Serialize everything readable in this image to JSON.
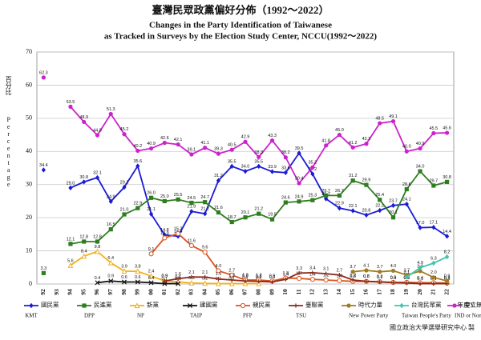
{
  "chart_data": {
    "type": "line",
    "title": "臺灣民眾政黨偏好分佈（1992～2022）",
    "subtitle": "Changes in the Party Identification of Taiwanese",
    "subtitle2": "as Tracked in Surveys by the Election Study Center, NCCU(1992～2022)",
    "y_label": "百分比",
    "y_label_en": "Percentage",
    "x_label": "年度Y",
    "source": "國立政治大學選舉研究中心 製",
    "categories": [
      "92",
      "93",
      "94",
      "95",
      "96",
      "97",
      "98",
      "99",
      "00",
      "01",
      "02",
      "03",
      "04",
      "05",
      "06",
      "07",
      "08",
      "09",
      "10",
      "11",
      "12",
      "13",
      "14",
      "15",
      "16",
      "17",
      "18",
      "19",
      "20",
      "21",
      "22"
    ],
    "ylim": [
      0,
      70
    ],
    "yticks": [
      0,
      10,
      20,
      30,
      40,
      50,
      60,
      70
    ],
    "grid": true,
    "legend": "bottom",
    "series": [
      {
        "name": "國民黨",
        "name_en": "KMT",
        "color": "#1b1bd6",
        "marker": "diamond",
        "values": [
          34.4,
          null,
          29.0,
          30.8,
          32.1,
          24.9,
          29.2,
          35.6,
          21.1,
          14.8,
          14.4,
          21.9,
          21.2,
          31.2,
          35.5,
          34.0,
          35.5,
          33.9,
          33.6,
          39.5,
          33.2,
          25.7,
          22.9,
          22.1,
          20.8,
          22.2,
          23.7,
          24.1,
          17.0,
          17.1,
          14.4
        ],
        "value_labels": [
          "34.4",
          null,
          "29.0",
          "30.8",
          "32.1",
          "24.9",
          "29.2",
          "35.6",
          "21.1",
          "14.8",
          "14.4",
          "21.9",
          "21.2",
          "31.2",
          "35.5",
          "34.0",
          "35.5",
          "33.9",
          "33.6",
          "39.5",
          "33.2",
          "25.7",
          "22.9",
          "22.1",
          "20.8",
          "22.2",
          "23.7",
          "24.1",
          "17.0",
          "17.1",
          "14.4"
        ]
      },
      {
        "name": "民進黨",
        "name_en": "DPP",
        "color": "#2e7d1f",
        "marker": "square",
        "values": [
          3.3,
          null,
          12.1,
          12.8,
          12.8,
          16.5,
          21.0,
          22.9,
          26.0,
          25.0,
          25.5,
          24.5,
          24.7,
          21.6,
          18.7,
          20.1,
          21.2,
          19.5,
          24.6,
          24.9,
          25.3,
          26.7,
          26.7,
          31.2,
          29.9,
          25.4,
          20.1,
          28.6,
          34.0,
          29.7,
          30.8
        ],
        "value_labels": [
          "3.3",
          null,
          "12.1",
          "12.8",
          "12.8",
          "16.5",
          "21.0",
          "22.9",
          "26.0",
          "25.0",
          "25.5",
          "24.5",
          "24.7",
          "21.6",
          "18.7",
          "20.1",
          "21.2",
          "19.5",
          "24.6",
          "24.9",
          "25.3",
          "26.7",
          "26.7",
          "31.2",
          "29.9",
          "25.4",
          "20.1",
          "28.6",
          "34.0",
          "29.7",
          "30.8"
        ]
      },
      {
        "name": "新黨",
        "name_en": "NP",
        "color": "#f0b020",
        "marker": "triangle",
        "values": [
          null,
          null,
          5.6,
          8.4,
          9.8,
          6.4,
          3.9,
          3.8,
          2.4,
          0.9,
          0.6,
          0.3,
          0.2,
          0.1,
          0.1,
          0.1,
          0.1,
          null,
          null,
          null,
          null,
          null,
          null,
          null,
          null,
          null,
          null,
          null,
          null,
          null,
          null
        ],
        "value_labels": [
          null,
          null,
          "5.6",
          "8.4",
          "9.8",
          "6.4",
          "3.9",
          "3.8",
          "2.4",
          "0.9",
          "0.6",
          "0.3",
          "0.2",
          "0.1",
          "0.1",
          "0.1",
          "0.1",
          null,
          null,
          null,
          null,
          null,
          null,
          null,
          null,
          null,
          null,
          null,
          null,
          null,
          null
        ]
      },
      {
        "name": "建國黨",
        "name_en": "TAIP",
        "color": "#111111",
        "marker": "cross",
        "values": [
          null,
          null,
          null,
          null,
          0.4,
          0.9,
          0.6,
          0.6,
          0.4,
          0.1,
          0.1,
          null,
          null,
          null,
          null,
          null,
          null,
          null,
          null,
          null,
          null,
          null,
          null,
          null,
          null,
          null,
          null,
          null,
          null,
          null,
          null
        ],
        "value_labels": [
          null,
          null,
          null,
          null,
          "0.4",
          "0.9",
          "0.6",
          "0.6",
          "0.4",
          "0.1",
          "0.1",
          null,
          null,
          null,
          null,
          null,
          null,
          null,
          null,
          null,
          null,
          null,
          null,
          null,
          null,
          null,
          null,
          null,
          null,
          null,
          null
        ]
      },
      {
        "name": "親民黨",
        "name_en": "PFP",
        "color": "#d9541e",
        "marker": "circle-open",
        "values": [
          null,
          null,
          null,
          null,
          null,
          null,
          null,
          null,
          9.1,
          13.9,
          15.2,
          11.6,
          9.6,
          4.0,
          2.7,
          1.2,
          1.2,
          0.9,
          1.8,
          1.7,
          1.4,
          1.2,
          1.0,
          0.8,
          0.8,
          0.7,
          0.5,
          0.5,
          0.4,
          0.4,
          0.3
        ],
        "value_labels": [
          null,
          null,
          null,
          null,
          null,
          null,
          null,
          null,
          "9.1",
          "13.9",
          "15.2",
          "11.6",
          "9.6",
          "4.0",
          "2.7",
          "1.2",
          "1.2",
          "0.9",
          "1.8",
          "1.7",
          "1.4",
          "1.2",
          "1.0",
          "0.8",
          "0.8",
          "0.7",
          "0.5",
          "0.5",
          "0.4",
          "0.4",
          "0.3"
        ]
      },
      {
        "name": "臺聯黨",
        "name_en": "TSU",
        "color": "#8b2a1a",
        "marker": "plus",
        "values": [
          null,
          null,
          null,
          null,
          null,
          null,
          null,
          null,
          null,
          0.9,
          1.6,
          2.1,
          2.1,
          1.5,
          1.2,
          0.9,
          0.8,
          0.6,
          1.4,
          3.3,
          3.4,
          3.1,
          2.7,
          1.2,
          0.8,
          0.6,
          0.4,
          0.3,
          0.1,
          0.1,
          0.1
        ],
        "value_labels": [
          null,
          null,
          null,
          null,
          null,
          null,
          null,
          null,
          null,
          "0.9",
          "1.6",
          "2.1",
          "2.1",
          "1.5",
          "1.2",
          "0.9",
          "0.8",
          "0.6",
          "1.4",
          "3.3",
          "3.4",
          "3.1",
          "2.7",
          "1.2",
          "0.8",
          "0.6",
          "0.4",
          "0.3",
          "0.1",
          "0.1",
          "0.1"
        ]
      },
      {
        "name": "時代力量",
        "name_en": "New Power Party",
        "color": "#a07c20",
        "marker": "circle",
        "values": [
          null,
          null,
          null,
          null,
          null,
          null,
          null,
          null,
          null,
          null,
          null,
          null,
          null,
          null,
          null,
          null,
          null,
          null,
          null,
          null,
          null,
          null,
          null,
          3.7,
          4.1,
          3.7,
          4.0,
          2.7,
          3.9,
          2.0,
          0.9
        ],
        "value_labels": [
          null,
          null,
          null,
          null,
          null,
          null,
          null,
          null,
          null,
          null,
          null,
          null,
          null,
          null,
          null,
          null,
          null,
          null,
          null,
          null,
          null,
          null,
          null,
          "3.7",
          "4.1",
          "3.7",
          "4.0",
          "2.7",
          "3.9",
          "2.0",
          "0.9"
        ]
      },
      {
        "name": "台灣民眾黨",
        "name_en": "Taiwan People's Party",
        "color": "#3fc4b0",
        "marker": "diamond",
        "values": [
          null,
          null,
          null,
          null,
          null,
          null,
          null,
          null,
          null,
          null,
          null,
          null,
          null,
          null,
          null,
          null,
          null,
          null,
          null,
          null,
          null,
          null,
          null,
          null,
          null,
          null,
          null,
          2.1,
          4.9,
          6.3,
          8.2
        ],
        "value_labels": [
          null,
          null,
          null,
          null,
          null,
          null,
          null,
          null,
          null,
          null,
          null,
          null,
          null,
          null,
          null,
          null,
          null,
          null,
          null,
          null,
          null,
          null,
          null,
          null,
          null,
          null,
          null,
          "2.1",
          "4.9",
          "6.3",
          "8.2"
        ]
      },
      {
        "name": "中立無反應",
        "name_en": "IND or Non response",
        "color": "#cc22cc",
        "marker": "circle",
        "values": [
          62.3,
          null,
          53.5,
          48.9,
          44.9,
          51.3,
          45.2,
          40.2,
          40.9,
          42.6,
          42.1,
          39.1,
          41.1,
          39.3,
          40.5,
          42.9,
          38.3,
          43.3,
          38.2,
          30.4,
          35.2,
          41.8,
          45.0,
          41.2,
          42.3,
          48.5,
          49.1,
          40.0,
          40.9,
          45.5,
          45.6
        ],
        "value_labels": [
          "62.3",
          null,
          "53.5",
          "48.9",
          "44.9",
          "51.3",
          "45.2",
          "40.2",
          "40.9",
          "42.6",
          "42.1",
          "39.1",
          "41.1",
          "39.3",
          "40.5",
          "42.9",
          "38.3",
          "43.3",
          "38.2",
          "30.4",
          "35.2",
          "41.8",
          "45.0",
          "41.2",
          "42.3",
          "48.5",
          "49.1",
          "40.0",
          "40.9",
          "45.5",
          "45.6"
        ]
      }
    ]
  }
}
